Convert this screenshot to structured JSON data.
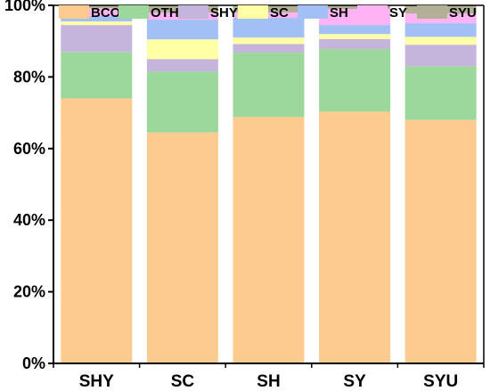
{
  "chart_data": {
    "type": "bar",
    "stacked": true,
    "normalized": true,
    "categories": [
      "SHY",
      "SC",
      "SH",
      "SY",
      "SYU"
    ],
    "series": [
      {
        "name": "BCO",
        "color": "#FDCB8F",
        "values": [
          74.0,
          64.5,
          68.8,
          70.3,
          68.0
        ]
      },
      {
        "name": "OTH",
        "color": "#9CD89B",
        "values": [
          13.0,
          17.0,
          18.0,
          17.5,
          15.0
        ]
      },
      {
        "name": "SHY",
        "color": "#C5B5DD",
        "values": [
          7.5,
          3.5,
          2.4,
          2.8,
          6.0
        ]
      },
      {
        "name": "SC",
        "color": "#FFFFA6",
        "values": [
          1.0,
          5.5,
          1.8,
          1.4,
          2.2
        ]
      },
      {
        "name": "SH",
        "color": "#A2C0F4",
        "values": [
          1.5,
          5.5,
          5.5,
          2.5,
          3.8
        ]
      },
      {
        "name": "SY",
        "color": "#FFB3F4",
        "values": [
          2.2,
          2.0,
          1.5,
          4.5,
          2.7
        ]
      },
      {
        "name": "SYU",
        "color": "#B2B094",
        "values": [
          0.8,
          2.0,
          2.0,
          1.0,
          2.3
        ]
      }
    ],
    "ylim": [
      0,
      100
    ],
    "yticks": [
      0,
      20,
      40,
      60,
      80,
      100
    ],
    "ytick_labels": [
      "0%",
      "20%",
      "40%",
      "60%",
      "80%",
      "100%"
    ],
    "legend": "top",
    "grid": false,
    "xlabel": "",
    "ylabel": "",
    "title": ""
  }
}
